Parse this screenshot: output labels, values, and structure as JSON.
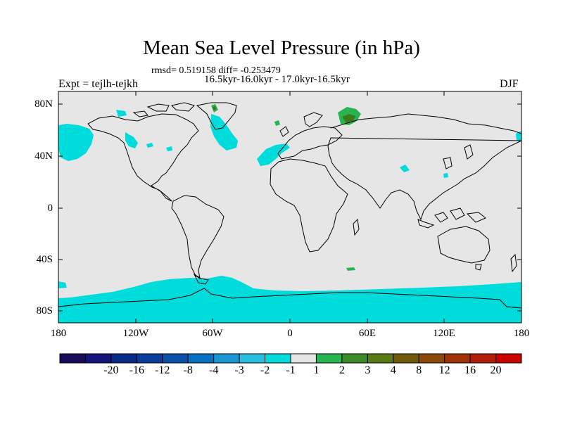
{
  "title": "Mean Sea Level Pressure (in hPa)",
  "stats": "rmsd= 0.519158 diff= -0.253479",
  "period": "16.5kyr-16.0kyr - 17.0kyr-16.5kyr",
  "expt": "Expt = tejlh-tejkh",
  "season": "DJF",
  "lat_labels": [
    "80N",
    "40N",
    "0",
    "40S",
    "80S"
  ],
  "lon_labels": [
    "180",
    "120W",
    "60W",
    "0",
    "60E",
    "120E",
    "180"
  ],
  "colorbar": {
    "labels": [
      "-20",
      "-16",
      "-12",
      "-8",
      "-4",
      "-3",
      "-2",
      "-1",
      "1",
      "2",
      "3",
      "4",
      "8",
      "12",
      "16",
      "20"
    ],
    "colors": [
      "#1a0a5c",
      "#14147a",
      "#0a2a8a",
      "#0a3c9a",
      "#0a50a8",
      "#0a70c0",
      "#1a96d2",
      "#28bee0",
      "#00dcdc",
      "#e6e6e6",
      "#28b450",
      "#3c8a28",
      "#5a7a14",
      "#6e5a0a",
      "#8c4a0a",
      "#a0320a",
      "#b41e0a",
      "#c80000"
    ]
  },
  "map": {
    "background_color": "#e6e6e6",
    "negative_anomaly_color": "#00dcdc",
    "positive_anomaly_color": "#28b450",
    "strong_positive_color": "#3c7a1e"
  }
}
